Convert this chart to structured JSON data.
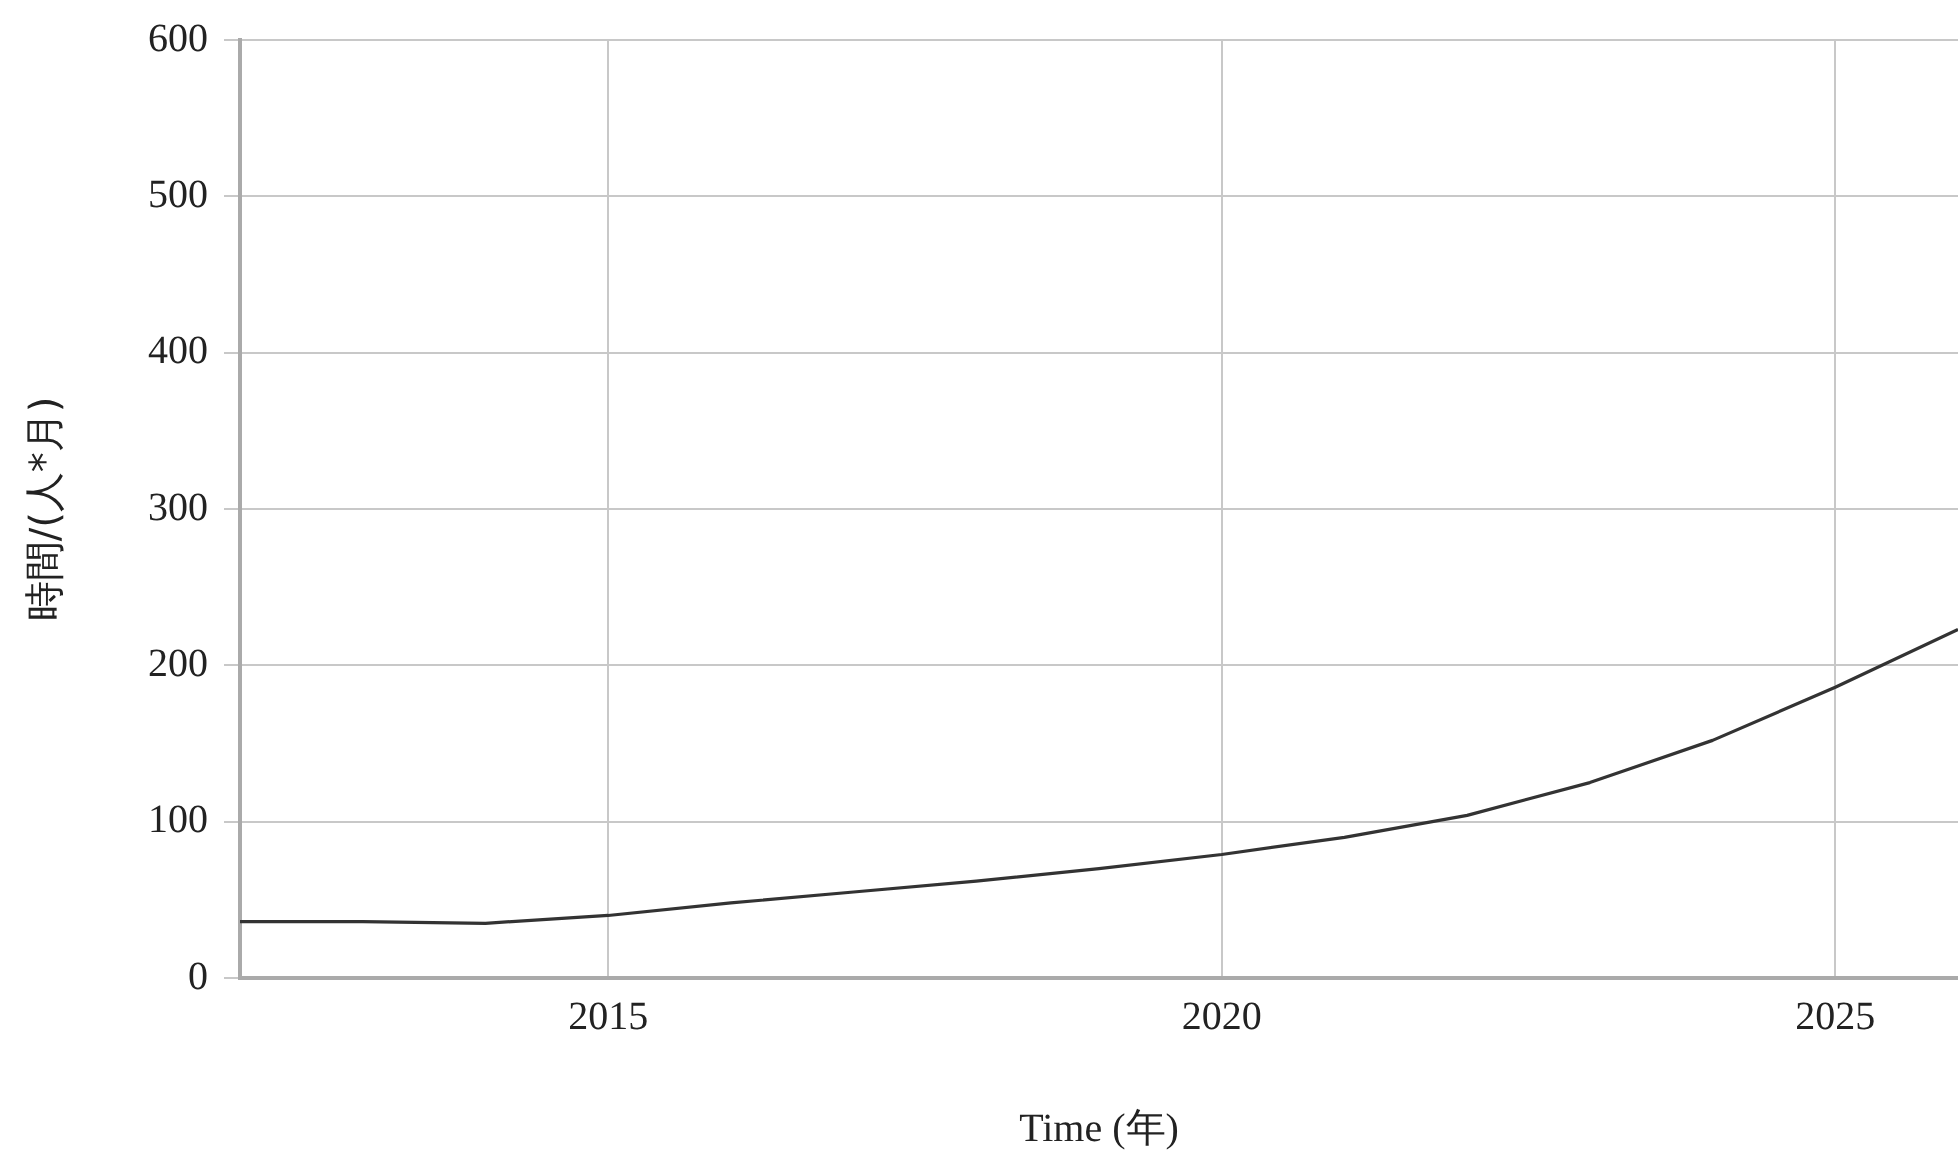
{
  "chart_data": {
    "type": "line",
    "xlabel": "Time (年)",
    "ylabel": "時間/(人*月)",
    "x": [
      2012,
      2013,
      2014,
      2015,
      2016,
      2017,
      2018,
      2019,
      2020,
      2021,
      2022,
      2023,
      2024,
      2025,
      2026
    ],
    "series": [
      {
        "color": "#333333",
        "values": [
          36,
          36,
          35,
          40,
          48,
          55,
          62,
          70,
          79,
          90,
          104,
          125,
          152,
          186,
          223
        ]
      }
    ],
    "xlim": [
      2012,
      2026
    ],
    "xticks": [
      2015,
      2020,
      2025
    ],
    "ylim": [
      0,
      600
    ],
    "yticks": [
      0,
      100,
      200,
      300,
      400,
      500,
      600
    ],
    "grid": true,
    "legend": false,
    "marker": "none",
    "line_style": "solid"
  }
}
